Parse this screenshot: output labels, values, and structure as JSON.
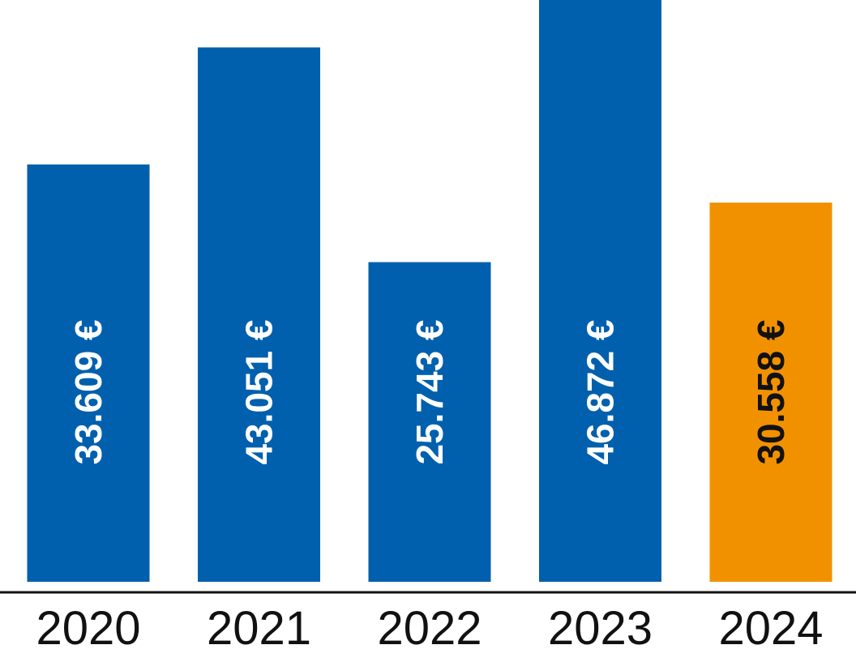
{
  "chart_data": {
    "type": "bar",
    "title": "",
    "xlabel": "",
    "ylabel": "",
    "categories": [
      "2020",
      "2021",
      "2022",
      "2023",
      "2024"
    ],
    "values": [
      33609,
      43051,
      25743,
      46872,
      30558
    ],
    "data_labels": [
      "33.609 €",
      "43.051 €",
      "25.743 €",
      "46.872 €",
      "30.558 €"
    ],
    "ylim": [
      0,
      46872
    ],
    "grid": false,
    "legend": "none",
    "data_label_orientation": "vertical",
    "colors": {
      "default_bar": "#0060AD",
      "highlight_bar": "#F29100",
      "default_label": "#ffffff",
      "highlight_label": "#111111",
      "axis": "#111111"
    },
    "highlight_category": "2024"
  }
}
